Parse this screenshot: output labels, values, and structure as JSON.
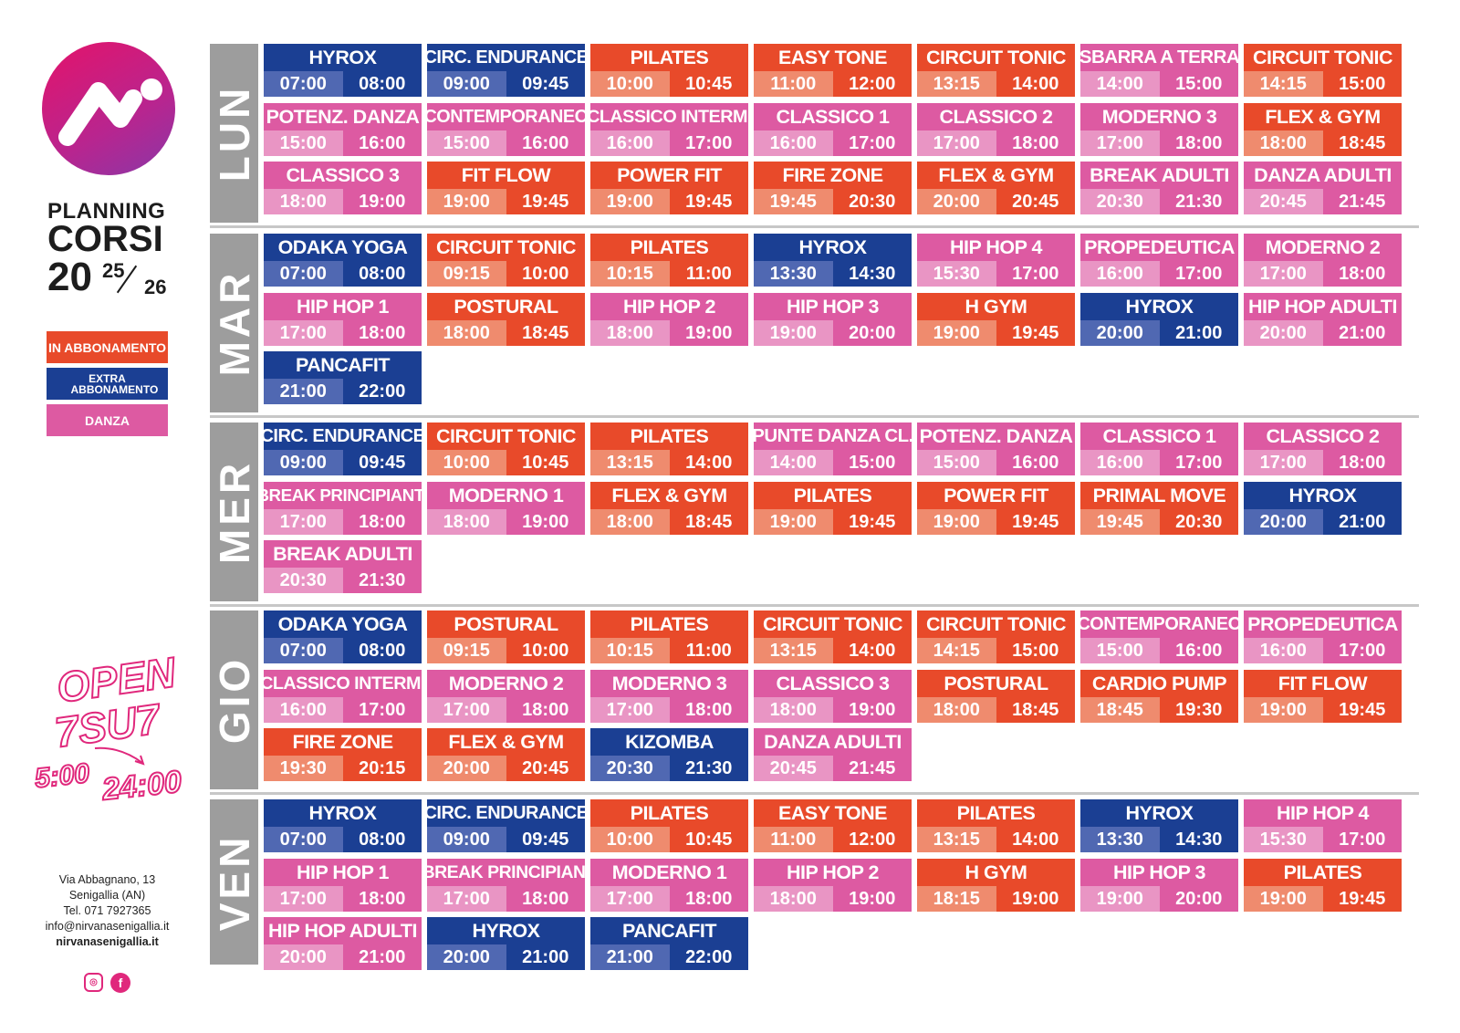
{
  "branding": {
    "planning": "PLANNING",
    "corsi": "CORSI",
    "year_main": "20",
    "year_top": "25",
    "year_bottom": "26"
  },
  "legend": [
    {
      "label": "IN ABBONAMENTO",
      "color": "#e84a2a"
    },
    {
      "label": "EXTRA ABBONAMENTO",
      "color": "#1b3f93"
    },
    {
      "label": "DANZA",
      "color": "#dd5aa2"
    }
  ],
  "open": {
    "line1": "OPEN",
    "line2": "7SU7",
    "start": "5:00",
    "end": "24:00"
  },
  "contact": {
    "address": "Via Abbagnano, 13",
    "city": "Senigallia (AN)",
    "phone": "Tel. 071 7927365",
    "email": "info@nirvanasenigallia.it",
    "website": "nirvanasenigallia.it"
  },
  "social": [
    {
      "icon": "instagram-icon"
    },
    {
      "icon": "facebook-icon",
      "glyph": "f"
    }
  ],
  "colors": {
    "in": "#e84a2a",
    "extra": "#1b3f93",
    "danza": "#dd5aa2",
    "day_label": "#9d9d9d"
  },
  "days": [
    {
      "label": "LUN",
      "rows": [
        [
          {
            "name": "HYROX",
            "start": "07:00",
            "end": "08:00",
            "type": "ex"
          },
          {
            "name": "CIRC. ENDURANCE",
            "start": "09:00",
            "end": "09:45",
            "type": "ex"
          },
          {
            "name": "PILATES",
            "start": "10:00",
            "end": "10:45",
            "type": "in"
          },
          {
            "name": "EASY TONE",
            "start": "11:00",
            "end": "12:00",
            "type": "in"
          },
          {
            "name": "CIRCUIT TONIC",
            "start": "13:15",
            "end": "14:00",
            "type": "in"
          },
          {
            "name": "SBARRA A TERRA",
            "start": "14:00",
            "end": "15:00",
            "type": "da"
          },
          {
            "name": "CIRCUIT TONIC",
            "start": "14:15",
            "end": "15:00",
            "type": "in"
          }
        ],
        [
          {
            "name": "POTENZ. DANZA",
            "start": "15:00",
            "end": "16:00",
            "type": "da"
          },
          {
            "name": "CONTEMPORANEO",
            "start": "15:00",
            "end": "16:00",
            "type": "da"
          },
          {
            "name": "CLASSICO INTERM.",
            "start": "16:00",
            "end": "17:00",
            "type": "da"
          },
          {
            "name": "CLASSICO 1",
            "start": "16:00",
            "end": "17:00",
            "type": "da"
          },
          {
            "name": "CLASSICO 2",
            "start": "17:00",
            "end": "18:00",
            "type": "da"
          },
          {
            "name": "MODERNO 3",
            "start": "17:00",
            "end": "18:00",
            "type": "da"
          },
          {
            "name": "FLEX & GYM",
            "start": "18:00",
            "end": "18:45",
            "type": "in"
          }
        ],
        [
          {
            "name": "CLASSICO 3",
            "start": "18:00",
            "end": "19:00",
            "type": "da"
          },
          {
            "name": "FIT FLOW",
            "start": "19:00",
            "end": "19:45",
            "type": "in"
          },
          {
            "name": "POWER FIT",
            "start": "19:00",
            "end": "19:45",
            "type": "in"
          },
          {
            "name": "FIRE ZONE",
            "start": "19:45",
            "end": "20:30",
            "type": "in"
          },
          {
            "name": "FLEX & GYM",
            "start": "20:00",
            "end": "20:45",
            "type": "in"
          },
          {
            "name": "BREAK ADULTI",
            "start": "20:30",
            "end": "21:30",
            "type": "da"
          },
          {
            "name": "DANZA ADULTI",
            "start": "20:45",
            "end": "21:45",
            "type": "da"
          }
        ]
      ]
    },
    {
      "label": "MAR",
      "rows": [
        [
          {
            "name": "ODAKA YOGA",
            "start": "07:00",
            "end": "08:00",
            "type": "ex"
          },
          {
            "name": "CIRCUIT TONIC",
            "start": "09:15",
            "end": "10:00",
            "type": "in"
          },
          {
            "name": "PILATES",
            "start": "10:15",
            "end": "11:00",
            "type": "in"
          },
          {
            "name": "HYROX",
            "start": "13:30",
            "end": "14:30",
            "type": "ex"
          },
          {
            "name": "HIP HOP 4",
            "start": "15:30",
            "end": "17:00",
            "type": "da"
          },
          {
            "name": "PROPEDEUTICA",
            "start": "16:00",
            "end": "17:00",
            "type": "da"
          },
          {
            "name": "MODERNO 2",
            "start": "17:00",
            "end": "18:00",
            "type": "da"
          }
        ],
        [
          {
            "name": "HIP HOP 1",
            "start": "17:00",
            "end": "18:00",
            "type": "da"
          },
          {
            "name": "POSTURAL",
            "start": "18:00",
            "end": "18:45",
            "type": "in"
          },
          {
            "name": "HIP HOP 2",
            "start": "18:00",
            "end": "19:00",
            "type": "da"
          },
          {
            "name": "HIP HOP 3",
            "start": "19:00",
            "end": "20:00",
            "type": "da"
          },
          {
            "name": "H GYM",
            "start": "19:00",
            "end": "19:45",
            "type": "in"
          },
          {
            "name": "HYROX",
            "start": "20:00",
            "end": "21:00",
            "type": "ex"
          },
          {
            "name": "HIP HOP ADULTI",
            "start": "20:00",
            "end": "21:00",
            "type": "da"
          }
        ],
        [
          {
            "name": "PANCAFIT",
            "start": "21:00",
            "end": "22:00",
            "type": "ex"
          }
        ]
      ]
    },
    {
      "label": "MER",
      "rows": [
        [
          {
            "name": "CIRC. ENDURANCE",
            "start": "09:00",
            "end": "09:45",
            "type": "ex"
          },
          {
            "name": "CIRCUIT TONIC",
            "start": "10:00",
            "end": "10:45",
            "type": "in"
          },
          {
            "name": "PILATES",
            "start": "13:15",
            "end": "14:00",
            "type": "in"
          },
          {
            "name": "PUNTE DANZA CL.",
            "start": "14:00",
            "end": "15:00",
            "type": "da"
          },
          {
            "name": "POTENZ. DANZA",
            "start": "15:00",
            "end": "16:00",
            "type": "da"
          },
          {
            "name": "CLASSICO 1",
            "start": "16:00",
            "end": "17:00",
            "type": "da"
          },
          {
            "name": "CLASSICO 2",
            "start": "17:00",
            "end": "18:00",
            "type": "da"
          }
        ],
        [
          {
            "name": "BREAK PRINCIPIANTI",
            "start": "17:00",
            "end": "18:00",
            "type": "da"
          },
          {
            "name": "MODERNO 1",
            "start": "18:00",
            "end": "19:00",
            "type": "da"
          },
          {
            "name": "FLEX & GYM",
            "start": "18:00",
            "end": "18:45",
            "type": "in"
          },
          {
            "name": "PILATES",
            "start": "19:00",
            "end": "19:45",
            "type": "in"
          },
          {
            "name": "POWER FIT",
            "start": "19:00",
            "end": "19:45",
            "type": "in"
          },
          {
            "name": "PRIMAL MOVE",
            "start": "19:45",
            "end": "20:30",
            "type": "in"
          },
          {
            "name": "HYROX",
            "start": "20:00",
            "end": "21:00",
            "type": "ex"
          }
        ],
        [
          {
            "name": "BREAK ADULTI",
            "start": "20:30",
            "end": "21:30",
            "type": "da"
          }
        ]
      ]
    },
    {
      "label": "GIO",
      "rows": [
        [
          {
            "name": "ODAKA YOGA",
            "start": "07:00",
            "end": "08:00",
            "type": "ex"
          },
          {
            "name": "POSTURAL",
            "start": "09:15",
            "end": "10:00",
            "type": "in"
          },
          {
            "name": "PILATES",
            "start": "10:15",
            "end": "11:00",
            "type": "in"
          },
          {
            "name": "CIRCUIT TONIC",
            "start": "13:15",
            "end": "14:00",
            "type": "in"
          },
          {
            "name": "CIRCUIT TONIC",
            "start": "14:15",
            "end": "15:00",
            "type": "in"
          },
          {
            "name": "CONTEMPORANEO",
            "start": "15:00",
            "end": "16:00",
            "type": "da"
          },
          {
            "name": "PROPEDEUTICA",
            "start": "16:00",
            "end": "17:00",
            "type": "da"
          }
        ],
        [
          {
            "name": "CLASSICO INTERM.",
            "start": "16:00",
            "end": "17:00",
            "type": "da"
          },
          {
            "name": "MODERNO 2",
            "start": "17:00",
            "end": "18:00",
            "type": "da"
          },
          {
            "name": "MODERNO 3",
            "start": "17:00",
            "end": "18:00",
            "type": "da"
          },
          {
            "name": "CLASSICO 3",
            "start": "18:00",
            "end": "19:00",
            "type": "da"
          },
          {
            "name": "POSTURAL",
            "start": "18:00",
            "end": "18:45",
            "type": "in"
          },
          {
            "name": "CARDIO PUMP",
            "start": "18:45",
            "end": "19:30",
            "type": "in"
          },
          {
            "name": "FIT FLOW",
            "start": "19:00",
            "end": "19:45",
            "type": "in"
          }
        ],
        [
          {
            "name": "FIRE ZONE",
            "start": "19:30",
            "end": "20:15",
            "type": "in"
          },
          {
            "name": "FLEX & GYM",
            "start": "20:00",
            "end": "20:45",
            "type": "in"
          },
          {
            "name": "KIZOMBA",
            "start": "20:30",
            "end": "21:30",
            "type": "ex"
          },
          {
            "name": "DANZA ADULTI",
            "start": "20:45",
            "end": "21:45",
            "type": "da"
          }
        ]
      ]
    },
    {
      "label": "VEN",
      "rows": [
        [
          {
            "name": "HYROX",
            "start": "07:00",
            "end": "08:00",
            "type": "ex"
          },
          {
            "name": "CIRC. ENDURANCE",
            "start": "09:00",
            "end": "09:45",
            "type": "ex"
          },
          {
            "name": "PILATES",
            "start": "10:00",
            "end": "10:45",
            "type": "in"
          },
          {
            "name": "EASY TONE",
            "start": "11:00",
            "end": "12:00",
            "type": "in"
          },
          {
            "name": "PILATES",
            "start": "13:15",
            "end": "14:00",
            "type": "in"
          },
          {
            "name": "HYROX",
            "start": "13:30",
            "end": "14:30",
            "type": "ex"
          },
          {
            "name": "HIP HOP 4",
            "start": "15:30",
            "end": "17:00",
            "type": "da"
          }
        ],
        [
          {
            "name": "HIP HOP 1",
            "start": "17:00",
            "end": "18:00",
            "type": "da"
          },
          {
            "name": "BREAK PRINCIPIAN.",
            "start": "17:00",
            "end": "18:00",
            "type": "da"
          },
          {
            "name": "MODERNO 1",
            "start": "17:00",
            "end": "18:00",
            "type": "da"
          },
          {
            "name": "HIP HOP 2",
            "start": "18:00",
            "end": "19:00",
            "type": "da"
          },
          {
            "name": "H GYM",
            "start": "18:15",
            "end": "19:00",
            "type": "in"
          },
          {
            "name": "HIP HOP 3",
            "start": "19:00",
            "end": "20:00",
            "type": "da"
          },
          {
            "name": "PILATES",
            "start": "19:00",
            "end": "19:45",
            "type": "in"
          }
        ],
        [
          {
            "name": "HIP HOP ADULTI",
            "start": "20:00",
            "end": "21:00",
            "type": "da"
          },
          {
            "name": "HYROX",
            "start": "20:00",
            "end": "21:00",
            "type": "ex"
          },
          {
            "name": "PANCAFIT",
            "start": "21:00",
            "end": "22:00",
            "type": "ex"
          }
        ]
      ]
    }
  ]
}
